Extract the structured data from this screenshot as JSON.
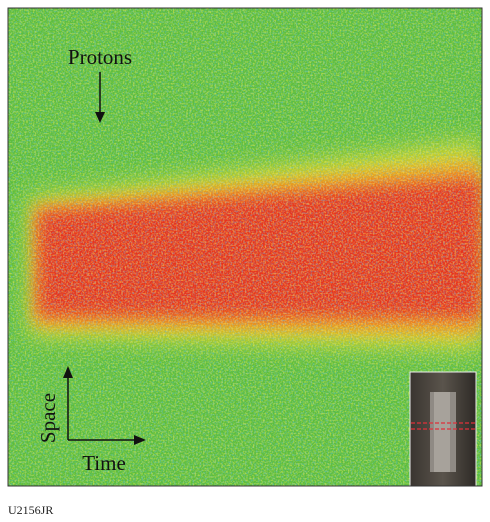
{
  "labels": {
    "protons": "Protons",
    "space": "Space",
    "time": "Time"
  },
  "figure_id": "U2156JR"
}
